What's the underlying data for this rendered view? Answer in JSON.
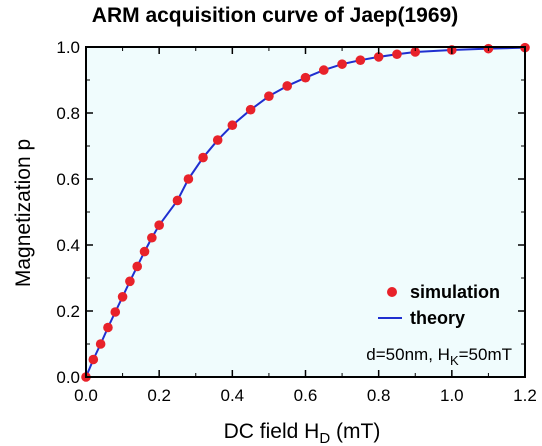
{
  "chart_data": {
    "type": "scatter",
    "title": "ARM acquisition curve of Jaep(1969)",
    "xlabel": "DC field H",
    "xlabel_sub": "D",
    "xlabel_unit": " (mT)",
    "ylabel": "Magnetization p",
    "xlim": [
      0,
      1.2
    ],
    "ylim": [
      0,
      1.0
    ],
    "xticks": [
      "0.0",
      "0.2",
      "0.4",
      "0.6",
      "0.8",
      "1.0",
      "1.2"
    ],
    "yticks": [
      "0.0",
      "0.2",
      "0.4",
      "0.6",
      "0.8",
      "1.0"
    ],
    "grid": false,
    "legend_position": "lower-right",
    "annotation": {
      "prefix": "d=50nm, H",
      "sub": "K",
      "suffix": "=50mT"
    },
    "series": [
      {
        "name": "simulation",
        "kind": "points",
        "color": "#e8222a",
        "x": [
          0.0,
          0.02,
          0.04,
          0.06,
          0.08,
          0.1,
          0.12,
          0.14,
          0.16,
          0.18,
          0.2,
          0.25,
          0.28,
          0.32,
          0.36,
          0.4,
          0.45,
          0.5,
          0.55,
          0.6,
          0.65,
          0.7,
          0.75,
          0.8,
          0.85,
          0.9,
          1.0,
          1.1,
          1.2
        ],
        "y": [
          0.0,
          0.053,
          0.1,
          0.15,
          0.197,
          0.243,
          0.29,
          0.335,
          0.38,
          0.422,
          0.46,
          0.535,
          0.6,
          0.665,
          0.718,
          0.763,
          0.81,
          0.851,
          0.882,
          0.907,
          0.93,
          0.948,
          0.96,
          0.97,
          0.978,
          0.985,
          0.991,
          0.995,
          0.998
        ]
      },
      {
        "name": "theory",
        "kind": "line",
        "color": "#1f2fd0"
      }
    ]
  }
}
